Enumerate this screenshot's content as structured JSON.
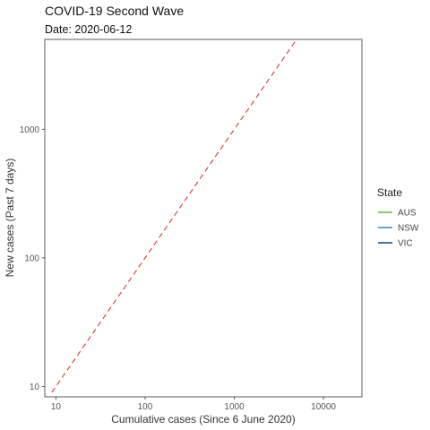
{
  "chart_data": {
    "type": "line",
    "title": "COVID-19 Second Wave",
    "subtitle": "Date: 2020-06-12",
    "xlabel": "Cumulative cases (Since 6 June 2020)",
    "ylabel": "New cases (Past 7 days)",
    "x_scale": "log10",
    "y_scale": "log10",
    "xlim": [
      7.5,
      27000
    ],
    "ylim": [
      8.3,
      5000
    ],
    "x_ticks": [
      10,
      100,
      1000,
      10000
    ],
    "x_tick_labels": [
      "10",
      "100",
      "1000",
      "10000"
    ],
    "y_ticks": [
      10,
      100,
      1000
    ],
    "y_tick_labels": [
      "10",
      "100",
      "1000"
    ],
    "grid": false,
    "series": [],
    "reference_line": {
      "style": "dashed",
      "color": "#d62728",
      "x": [
        9,
        5000
      ],
      "y": [
        9,
        5000
      ]
    },
    "legend": {
      "title": "State",
      "position": "right",
      "entries": [
        {
          "label": "AUS",
          "color": "#6abf45"
        },
        {
          "label": "NSW",
          "color": "#3f8fd0"
        },
        {
          "label": "VIC",
          "color": "#1f4e79"
        }
      ]
    }
  }
}
